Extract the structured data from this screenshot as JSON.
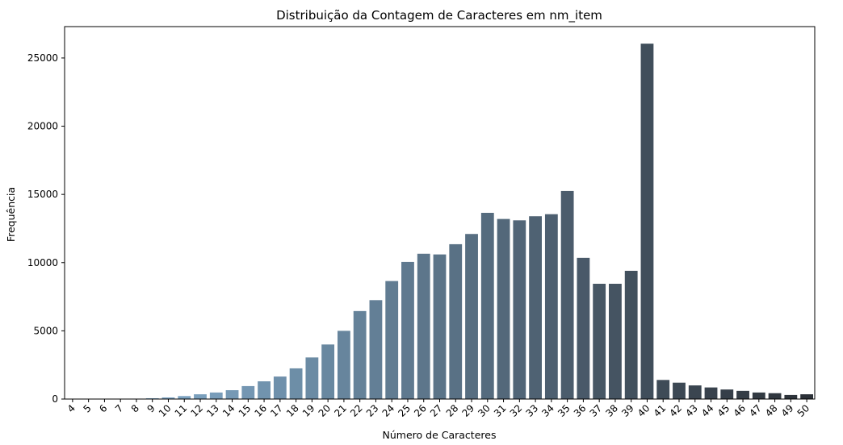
{
  "chart_data": {
    "type": "bar",
    "title": "Distribuição da Contagem de Caracteres em nm_item",
    "xlabel": "Número de Caracteres",
    "ylabel": "Frequência",
    "ylim": [
      0,
      27300
    ],
    "yticks": [
      0,
      5000,
      10000,
      15000,
      20000,
      25000
    ],
    "legend": "none",
    "grid": false,
    "palette": [
      "#8ab6d8",
      "#2c3138"
    ],
    "categories": [
      "4",
      "5",
      "6",
      "7",
      "8",
      "9",
      "10",
      "11",
      "12",
      "13",
      "14",
      "15",
      "16",
      "17",
      "18",
      "19",
      "20",
      "21",
      "22",
      "23",
      "24",
      "25",
      "26",
      "27",
      "28",
      "29",
      "30",
      "31",
      "32",
      "33",
      "34",
      "35",
      "36",
      "37",
      "38",
      "39",
      "40",
      "41",
      "42",
      "43",
      "44",
      "45",
      "46",
      "47",
      "48",
      "49",
      "50"
    ],
    "values": [
      3,
      5,
      8,
      15,
      30,
      60,
      120,
      220,
      350,
      480,
      650,
      950,
      1300,
      1650,
      2250,
      3050,
      4000,
      5000,
      6450,
      7250,
      8650,
      10050,
      10650,
      10600,
      11350,
      12100,
      13650,
      13200,
      13100,
      13400,
      13550,
      15250,
      10350,
      8450,
      8450,
      9400,
      26050,
      1400,
      1200,
      1000,
      850,
      700,
      600,
      480,
      430,
      300,
      350
    ]
  }
}
